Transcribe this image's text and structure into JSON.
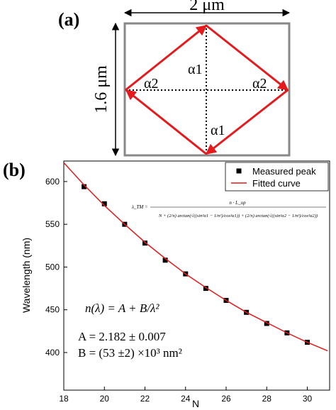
{
  "diagram": {
    "panel_label": "(a)",
    "width_label": "2 μm",
    "height_label": "1.6 μm",
    "angle_labels": [
      "α1",
      "α2",
      "α2",
      "α1"
    ]
  },
  "chart_data": {
    "type": "scatter",
    "panel_label": "(b)",
    "x_label": "N",
    "y_label": "Wavelength (nm)",
    "xlim": [
      18,
      31.1
    ],
    "ylim": [
      356,
      624
    ],
    "xticks": [
      18,
      20,
      22,
      24,
      26,
      28,
      30
    ],
    "yticks": [
      400,
      450,
      500,
      550,
      600
    ],
    "legend": "top-right",
    "series": [
      {
        "name": "Measured peak",
        "color": "#000000",
        "kind": "marker",
        "x": [
          19,
          20,
          21,
          22,
          23,
          24,
          25,
          26,
          27,
          28,
          29,
          30
        ],
        "values": [
          594,
          574,
          550,
          528,
          508,
          492,
          475,
          461,
          447,
          434,
          423,
          412
        ]
      },
      {
        "name": "Fitted curve",
        "color": "#e41a1c",
        "kind": "line",
        "x": [
          18,
          19,
          20,
          21,
          22,
          23,
          24,
          25,
          26,
          27,
          28,
          29,
          30,
          31
        ],
        "values": [
          622,
          596,
          572,
          550,
          529,
          510,
          492,
          476,
          461,
          447,
          435,
          423,
          412,
          402
        ]
      }
    ],
    "annotations": {
      "formula_lhs": "λ_TM =",
      "formula_numerator": "n · L_op",
      "formula_denominator": "N + (2/π) arctan(√((sin²α1 − 1/n²)/cos²α1)) + (2/π) arctan(√((sin²α2 − 1/n²)/cos²α2))",
      "dispersion": "n(λ) = A + B/λ²",
      "fit_a": "A = 2.182 ± 0.007",
      "fit_b": "B = (53 ±2) ×10³ nm²"
    }
  }
}
